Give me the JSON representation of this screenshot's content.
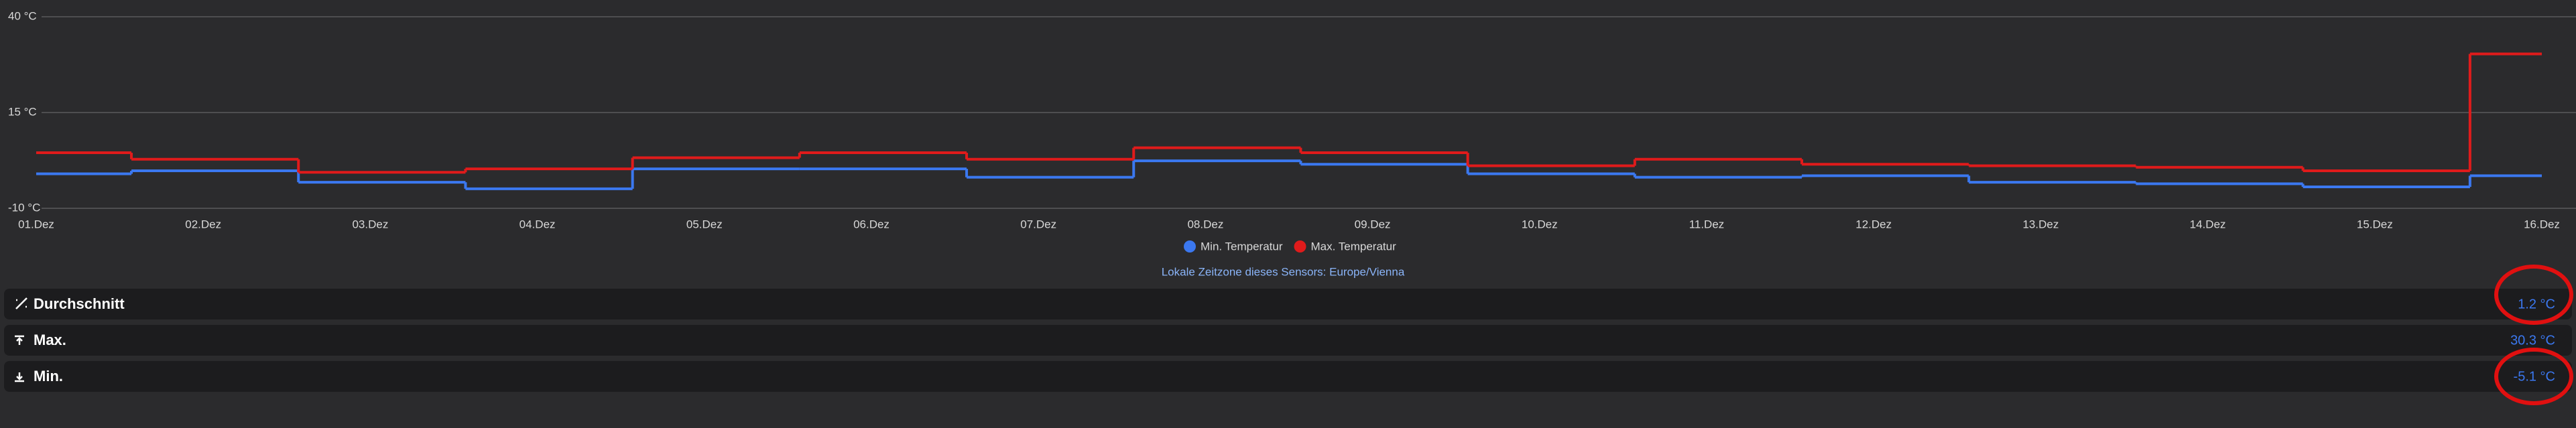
{
  "chart_data": {
    "type": "step",
    "x": [
      0,
      0.57,
      1.57,
      2.57,
      3.57,
      4.57,
      5.57,
      6.57,
      7.57,
      8.57,
      9.57,
      10.57,
      11.57,
      12.57,
      13.57,
      14.57
    ],
    "series": [
      {
        "name": "Min. Temperatur",
        "color": "#3b78f0",
        "values": [
          -1.0,
          -0.2,
          -3.2,
          -4.9,
          0.3,
          0.3,
          -1.9,
          2.4,
          1.5,
          -1.0,
          -1.9,
          -1.5,
          -3.2,
          -3.6,
          -4.4,
          -1.5
        ]
      },
      {
        "name": "Max. Temperatur",
        "color": "#e01b1b",
        "values": [
          4.5,
          2.8,
          -0.6,
          0.3,
          3.2,
          4.5,
          2.8,
          5.8,
          4.5,
          1.1,
          2.8,
          1.5,
          1.1,
          0.7,
          -0.2,
          30.3
        ]
      }
    ],
    "xlim": [
      0,
      15
    ],
    "xticks": [
      {
        "value": 0,
        "label": "01.Dez"
      },
      {
        "value": 1,
        "label": "02.Dez"
      },
      {
        "value": 2,
        "label": "03.Dez"
      },
      {
        "value": 3,
        "label": "04.Dez"
      },
      {
        "value": 4,
        "label": "05.Dez"
      },
      {
        "value": 5,
        "label": "06.Dez"
      },
      {
        "value": 6,
        "label": "07.Dez"
      },
      {
        "value": 7,
        "label": "08.Dez"
      },
      {
        "value": 8,
        "label": "09.Dez"
      },
      {
        "value": 9,
        "label": "10.Dez"
      },
      {
        "value": 10,
        "label": "11.Dez"
      },
      {
        "value": 11,
        "label": "12.Dez"
      },
      {
        "value": 12,
        "label": "13.Dez"
      },
      {
        "value": 13,
        "label": "14.Dez"
      },
      {
        "value": 14,
        "label": "15.Dez"
      },
      {
        "value": 15,
        "label": "16.Dez"
      }
    ],
    "ylim": [
      -10,
      40
    ],
    "yticks": [
      {
        "value": -10,
        "label": "-10 °C"
      },
      {
        "value": 15,
        "label": "15 °C"
      },
      {
        "value": 40,
        "label": "40 °C"
      }
    ],
    "grid": true
  },
  "timezone_note": "Lokale Zeitzone dieses Sensors: Europe/Vienna",
  "stats": [
    {
      "label": "Durchschnitt",
      "value": "1.2 °C"
    },
    {
      "label": "Max.",
      "value": "30.3 °C"
    },
    {
      "label": "Min.",
      "value": "-5.1 °C"
    }
  ]
}
